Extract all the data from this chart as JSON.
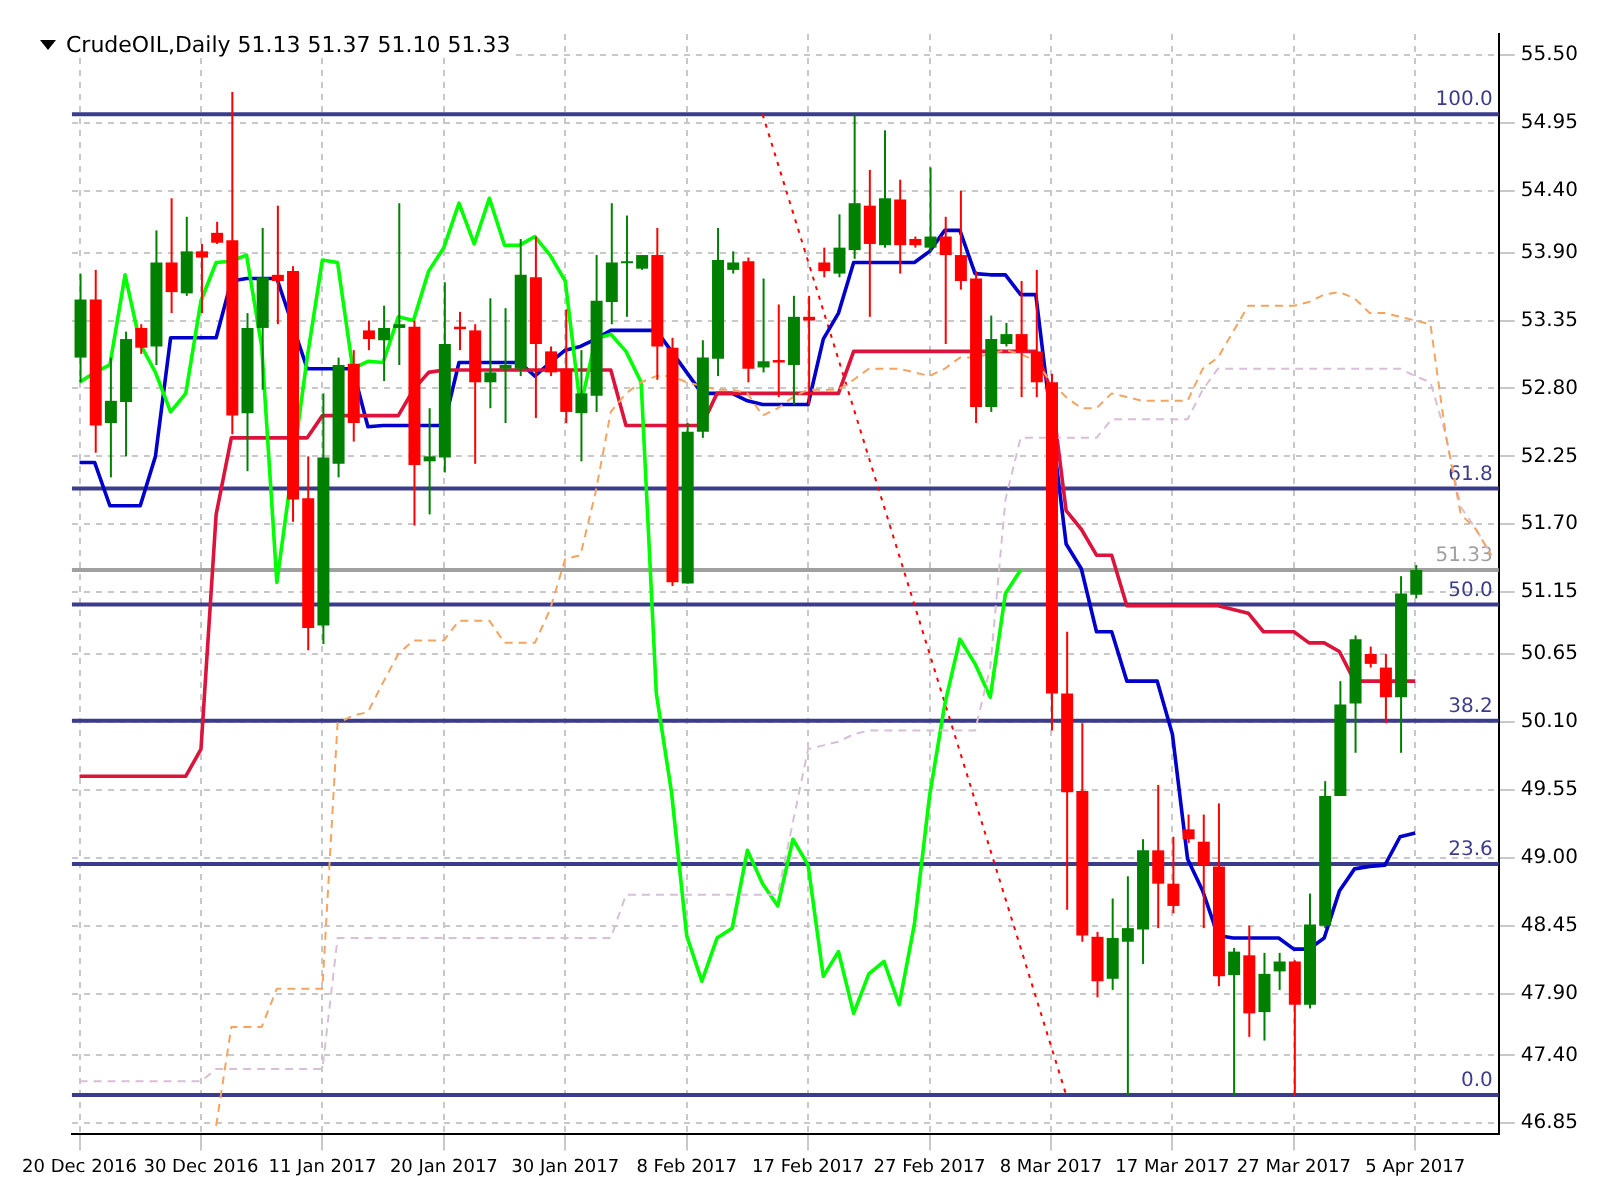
{
  "chart_data": {
    "type": "candlestick",
    "title": "CrudeOIL,Daily 51.13 51.37 51.10 51.33",
    "categories": [
      "20 Dec 2016",
      null,
      null,
      null,
      null,
      null,
      null,
      null,
      "30 Dec 2016",
      null,
      null,
      null,
      null,
      null,
      null,
      null,
      "11 Jan 2017",
      null,
      null,
      null,
      null,
      null,
      null,
      null,
      "20 Jan 2017",
      null,
      null,
      null,
      null,
      null,
      null,
      null,
      "30 Jan 2017",
      null,
      null,
      null,
      null,
      null,
      null,
      null,
      "8 Feb 2017",
      null,
      null,
      null,
      null,
      null,
      null,
      null,
      "17 Feb 2017",
      null,
      null,
      null,
      null,
      null,
      null,
      null,
      "27 Feb 2017",
      null,
      null,
      null,
      null,
      null,
      null,
      null,
      "8 Mar 2017",
      null,
      null,
      null,
      null,
      null,
      null,
      null,
      "17 Mar 2017",
      null,
      null,
      null,
      null,
      null,
      null,
      null,
      "27 Mar 2017",
      null,
      null,
      null,
      null,
      null,
      null,
      null,
      "5 Apr 2017",
      null,
      null,
      null,
      null,
      null
    ],
    "ohlc": [
      [
        53.05,
        53.73,
        52.85,
        53.52
      ],
      [
        53.52,
        53.76,
        52.28,
        52.5
      ],
      [
        52.52,
        53.05,
        52.08,
        52.7
      ],
      [
        52.69,
        53.26,
        52.25,
        53.2
      ],
      [
        53.29,
        53.32,
        53.08,
        53.13
      ],
      [
        53.14,
        54.08,
        52.99,
        53.82
      ],
      [
        53.82,
        54.34,
        53.41,
        53.58
      ],
      [
        53.57,
        54.19,
        53.55,
        53.91
      ],
      [
        53.91,
        53.97,
        53.41,
        53.86
      ],
      [
        54.06,
        54.15,
        53.97,
        53.98
      ],
      [
        54.0,
        55.2,
        52.43,
        52.58
      ],
      [
        52.6,
        53.41,
        52.13,
        53.29
      ],
      [
        53.29,
        54.1,
        52.79,
        53.7
      ],
      [
        53.72,
        54.28,
        53.32,
        53.67
      ],
      [
        53.75,
        53.79,
        51.72,
        51.9
      ],
      [
        51.91,
        52.25,
        50.68,
        50.86
      ],
      [
        50.88,
        52.76,
        50.73,
        52.24
      ],
      [
        52.19,
        53.05,
        52.08,
        52.99
      ],
      [
        53.0,
        53.11,
        52.37,
        52.52
      ],
      [
        53.27,
        53.35,
        53.11,
        53.2
      ],
      [
        53.19,
        53.47,
        52.86,
        53.29
      ],
      [
        53.29,
        54.3,
        52.99,
        53.32
      ],
      [
        53.3,
        53.35,
        51.69,
        52.18
      ],
      [
        52.21,
        52.64,
        51.78,
        52.25
      ],
      [
        52.24,
        53.66,
        52.12,
        53.16
      ],
      [
        53.3,
        53.42,
        53.11,
        53.28
      ],
      [
        53.27,
        53.32,
        52.19,
        52.85
      ],
      [
        52.85,
        53.53,
        52.64,
        52.93
      ],
      [
        52.96,
        53.45,
        52.52,
        52.99
      ],
      [
        52.96,
        54.01,
        52.9,
        53.72
      ],
      [
        53.7,
        54.03,
        52.56,
        53.16
      ],
      [
        53.1,
        53.14,
        52.9,
        52.93
      ],
      [
        52.96,
        53.44,
        52.52,
        52.61
      ],
      [
        52.6,
        53.11,
        52.21,
        52.76
      ],
      [
        52.74,
        53.88,
        52.61,
        53.51
      ],
      [
        53.5,
        54.3,
        53.32,
        53.82
      ],
      [
        53.82,
        54.2,
        53.38,
        53.83
      ],
      [
        53.77,
        53.88,
        53.76,
        53.88
      ],
      [
        53.88,
        54.1,
        52.87,
        53.14
      ],
      [
        53.13,
        53.21,
        51.2,
        51.23
      ],
      [
        51.22,
        52.52,
        51.22,
        52.45
      ],
      [
        52.45,
        53.19,
        52.4,
        53.05
      ],
      [
        53.04,
        54.1,
        52.9,
        53.84
      ],
      [
        53.76,
        53.91,
        53.73,
        53.82
      ],
      [
        53.83,
        53.86,
        52.85,
        52.96
      ],
      [
        52.97,
        53.69,
        52.93,
        53.02
      ],
      [
        53.03,
        53.48,
        52.73,
        53.01
      ],
      [
        52.99,
        53.55,
        52.67,
        53.38
      ],
      [
        53.38,
        53.55,
        52.67,
        53.35
      ],
      [
        53.82,
        53.94,
        53.7,
        53.75
      ],
      [
        53.73,
        54.21,
        53.7,
        53.94
      ],
      [
        53.92,
        55.01,
        53.85,
        54.3
      ],
      [
        54.28,
        54.57,
        53.38,
        53.97
      ],
      [
        53.96,
        54.89,
        53.94,
        54.34
      ],
      [
        54.33,
        54.49,
        53.73,
        53.96
      ],
      [
        54.01,
        54.03,
        53.94,
        53.96
      ],
      [
        53.94,
        54.59,
        53.91,
        54.03
      ],
      [
        54.03,
        54.19,
        53.16,
        53.88
      ],
      [
        53.88,
        54.4,
        53.6,
        53.67
      ],
      [
        53.69,
        53.75,
        52.52,
        52.65
      ],
      [
        52.65,
        53.39,
        52.61,
        53.2
      ],
      [
        53.16,
        53.33,
        53.14,
        53.24
      ],
      [
        53.24,
        53.67,
        52.73,
        53.1
      ],
      [
        53.1,
        53.76,
        52.73,
        52.85
      ],
      [
        52.85,
        52.92,
        50.03,
        50.33
      ],
      [
        50.33,
        50.83,
        48.58,
        49.53
      ],
      [
        49.54,
        50.09,
        48.32,
        48.37
      ],
      [
        48.36,
        48.4,
        47.87,
        48.0
      ],
      [
        48.02,
        48.67,
        47.93,
        48.35
      ],
      [
        48.32,
        48.85,
        47.07,
        48.43
      ],
      [
        48.42,
        49.15,
        48.14,
        49.06
      ],
      [
        49.06,
        49.59,
        48.43,
        48.79
      ],
      [
        48.79,
        49.17,
        48.55,
        48.61
      ],
      [
        49.23,
        49.35,
        49.12,
        49.15
      ],
      [
        49.13,
        49.35,
        48.43,
        48.94
      ],
      [
        48.93,
        49.44,
        47.96,
        48.04
      ],
      [
        48.05,
        48.27,
        47.07,
        48.24
      ],
      [
        48.21,
        48.45,
        47.55,
        47.74
      ],
      [
        47.75,
        48.23,
        47.52,
        48.06
      ],
      [
        48.08,
        48.23,
        47.93,
        48.16
      ],
      [
        48.16,
        48.17,
        47.07,
        47.81
      ],
      [
        47.81,
        48.71,
        47.78,
        48.46
      ],
      [
        48.45,
        49.62,
        48.43,
        49.5
      ],
      [
        49.5,
        50.43,
        49.5,
        50.24
      ],
      [
        50.25,
        50.8,
        49.85,
        50.77
      ],
      [
        50.65,
        50.71,
        50.54,
        50.57
      ],
      [
        50.54,
        50.65,
        50.09,
        50.3
      ],
      [
        50.3,
        51.28,
        49.85,
        51.14
      ],
      [
        51.13,
        51.37,
        51.1,
        51.33
      ],
      null,
      null,
      null,
      null,
      null
    ],
    "colors": [
      "#008000",
      "#ff0000",
      "#008000",
      "#008000",
      "#ff0000",
      "#008000",
      "#ff0000",
      "#008000",
      "#ff0000",
      "#ff0000",
      "#ff0000",
      "#008000",
      "#008000",
      "#ff0000",
      "#ff0000",
      "#ff0000",
      "#008000",
      "#008000",
      "#ff0000",
      "#ff0000",
      "#008000",
      "#008000",
      "#ff0000",
      "#008000",
      "#008000",
      "#ff0000",
      "#ff0000",
      "#008000",
      "#008000",
      "#008000",
      "#ff0000",
      "#ff0000",
      "#ff0000",
      "#008000",
      "#008000",
      "#008000",
      "#008000",
      "#008000",
      "#ff0000",
      "#ff0000",
      "#008000",
      "#008000",
      "#008000",
      "#008000",
      "#ff0000",
      "#008000",
      "#ff0000",
      "#008000",
      "#ff0000",
      "#ff0000",
      "#008000",
      "#008000",
      "#ff0000",
      "#008000",
      "#ff0000",
      "#ff0000",
      "#008000",
      "#ff0000",
      "#ff0000",
      "#ff0000",
      "#008000",
      "#008000",
      "#ff0000",
      "#ff0000",
      "#ff0000",
      "#ff0000",
      "#ff0000",
      "#ff0000",
      "#008000",
      "#008000",
      "#008000",
      "#ff0000",
      "#ff0000",
      "#ff0000",
      "#ff0000",
      "#ff0000",
      "#008000",
      "#ff0000",
      "#008000",
      "#008000",
      "#ff0000",
      "#008000",
      "#008000",
      "#008000",
      "#008000",
      "#ff0000",
      "#ff0000",
      "#008000",
      "#008000",
      null,
      null,
      null,
      null,
      null
    ],
    "series": [
      {
        "type": "line",
        "color": "#f4a460",
        "line_style": "dashed",
        "values": [
          null,
          null,
          null,
          null,
          null,
          null,
          null,
          null,
          null,
          46.83,
          47.63,
          47.63,
          47.63,
          47.94,
          47.94,
          47.94,
          47.94,
          50.09,
          50.15,
          50.18,
          50.42,
          50.65,
          50.76,
          50.76,
          50.76,
          50.92,
          50.92,
          50.92,
          50.74,
          50.74,
          50.74,
          51.01,
          51.42,
          51.45,
          51.96,
          52.61,
          52.76,
          52.85,
          52.9,
          52.9,
          52.85,
          52.82,
          52.79,
          52.79,
          52.76,
          52.58,
          52.64,
          52.73,
          52.79,
          52.79,
          52.79,
          52.87,
          52.96,
          52.96,
          52.96,
          52.93,
          52.9,
          52.96,
          53.05,
          53.05,
          53.08,
          53.11,
          53.08,
          53.02,
          52.85,
          52.73,
          52.64,
          52.64,
          52.76,
          52.73,
          52.7,
          52.7,
          52.7,
          52.7,
          52.96,
          53.05,
          53.26,
          53.47,
          53.47,
          53.47,
          53.47,
          53.5,
          53.56,
          53.58,
          53.53,
          53.41,
          53.41,
          53.38,
          53.35,
          53.32,
          52.43,
          51.78,
          51.66,
          51.45
        ]
      },
      {
        "type": "line",
        "color": "#d8bfd8",
        "line_style": "dashed",
        "values": [
          47.19,
          47.19,
          47.19,
          47.19,
          47.19,
          47.19,
          47.19,
          47.19,
          47.19,
          47.29,
          47.29,
          47.29,
          47.29,
          47.29,
          47.29,
          47.29,
          47.29,
          48.35,
          48.35,
          48.35,
          48.35,
          48.35,
          48.35,
          48.35,
          48.35,
          48.35,
          48.35,
          48.35,
          48.35,
          48.35,
          48.35,
          48.35,
          48.35,
          48.35,
          48.35,
          48.35,
          48.7,
          48.7,
          48.7,
          48.7,
          48.7,
          48.7,
          48.7,
          48.7,
          48.7,
          48.7,
          48.7,
          49.29,
          49.88,
          49.91,
          49.94,
          50.0,
          50.03,
          50.03,
          50.03,
          50.03,
          50.03,
          50.03,
          50.03,
          50.03,
          50.54,
          51.9,
          52.4,
          52.4,
          52.4,
          52.4,
          52.4,
          52.4,
          52.55,
          52.55,
          52.55,
          52.55,
          52.55,
          52.55,
          52.79,
          52.96,
          52.96,
          52.96,
          52.96,
          52.96,
          52.96,
          52.96,
          52.96,
          52.96,
          52.96,
          52.96,
          52.96,
          52.96,
          52.9,
          52.85,
          52.43,
          51.84,
          51.66,
          51.45
        ]
      },
      {
        "type": "line",
        "color": "#00ff00",
        "line_style": "solid",
        "values": [
          52.85,
          52.93,
          52.99,
          53.72,
          53.16,
          52.93,
          52.61,
          52.76,
          53.51,
          53.82,
          53.83,
          53.88,
          53.14,
          51.23,
          null,
          53.05,
          53.84,
          53.82,
          52.96,
          53.02,
          53.01,
          53.38,
          53.35,
          53.75,
          53.94,
          54.3,
          53.97,
          54.34,
          53.96,
          53.96,
          54.03,
          53.88,
          53.67,
          52.65,
          53.2,
          53.24,
          53.1,
          52.85,
          50.33,
          49.53,
          48.37,
          48.0,
          48.35,
          48.43,
          49.06,
          48.79,
          48.61,
          49.15,
          48.94,
          48.04,
          48.24,
          47.74,
          48.06,
          48.16,
          47.81,
          48.46,
          49.5,
          50.24,
          50.77,
          50.57,
          50.3,
          51.14,
          51.33,
          null,
          null,
          null,
          null,
          null,
          null,
          null,
          null,
          null,
          null,
          null,
          null,
          null,
          null,
          null,
          null,
          null,
          null,
          null,
          null,
          null,
          null,
          null,
          null,
          null,
          null,
          null,
          null,
          null,
          null,
          null
        ]
      },
      {
        "type": "line",
        "color": "#dc143c",
        "line_style": "solid",
        "values": [
          49.66,
          49.66,
          49.66,
          49.66,
          49.66,
          49.66,
          49.66,
          49.66,
          49.88,
          51.78,
          52.4,
          52.4,
          52.4,
          52.4,
          52.4,
          52.4,
          52.58,
          52.58,
          52.58,
          52.58,
          52.58,
          52.58,
          52.79,
          52.93,
          52.95,
          52.95,
          52.95,
          52.95,
          52.95,
          52.95,
          52.95,
          52.95,
          52.95,
          52.95,
          52.95,
          52.95,
          52.5,
          52.5,
          52.5,
          52.5,
          52.5,
          52.5,
          52.76,
          52.76,
          52.76,
          52.76,
          52.76,
          52.76,
          52.76,
          52.76,
          52.76,
          53.1,
          53.1,
          53.1,
          53.1,
          53.1,
          53.1,
          53.1,
          53.1,
          53.1,
          53.1,
          53.1,
          53.1,
          53.1,
          52.79,
          51.81,
          51.66,
          51.45,
          51.45,
          51.04,
          51.04,
          51.04,
          51.04,
          51.04,
          51.04,
          51.04,
          51.01,
          50.98,
          50.83,
          50.83,
          50.83,
          50.74,
          50.74,
          50.67,
          50.43,
          50.43,
          50.43,
          50.43,
          50.43,
          null,
          null,
          null,
          null,
          null
        ]
      },
      {
        "type": "line",
        "color": "#0000cc",
        "line_style": "solid",
        "values": [
          52.2,
          52.2,
          51.85,
          51.85,
          51.85,
          52.25,
          53.21,
          53.21,
          53.21,
          53.21,
          53.67,
          53.69,
          53.69,
          53.69,
          null,
          52.96,
          52.96,
          52.96,
          52.96,
          52.49,
          52.5,
          52.5,
          52.5,
          52.5,
          52.5,
          53.01,
          53.01,
          53.01,
          53.01,
          53.01,
          52.9,
          53.01,
          53.11,
          53.14,
          53.2,
          53.27,
          53.27,
          53.27,
          53.27,
          null,
          null,
          52.76,
          52.76,
          52.76,
          52.7,
          52.67,
          52.67,
          52.67,
          52.67,
          53.2,
          53.41,
          53.82,
          53.82,
          53.82,
          53.82,
          53.82,
          53.91,
          54.08,
          54.08,
          53.73,
          53.72,
          53.72,
          53.56,
          53.56,
          null,
          51.54,
          51.34,
          50.83,
          50.83,
          50.43,
          50.43,
          50.43,
          50.0,
          48.99,
          48.73,
          48.37,
          48.35,
          48.35,
          48.35,
          48.35,
          48.26,
          48.26,
          48.35,
          48.73,
          48.91,
          48.93,
          48.94,
          49.17,
          49.2,
          null,
          null,
          null,
          null,
          null
        ]
      },
      {
        "type": "line",
        "color": "#ff0000",
        "line_style": "dotted",
        "values": [
          null,
          null,
          null,
          null,
          null,
          null,
          null,
          null,
          null,
          null,
          null,
          null,
          null,
          null,
          null,
          null,
          null,
          null,
          null,
          null,
          null,
          null,
          null,
          null,
          null,
          null,
          null,
          null,
          null,
          null,
          null,
          null,
          null,
          null,
          null,
          null,
          null,
          null,
          null,
          null,
          null,
          null,
          null,
          null,
          null,
          55.02,
          null,
          null,
          null,
          null,
          null,
          null,
          null,
          null,
          null,
          null,
          null,
          null,
          null,
          null,
          null,
          null,
          null,
          null,
          null,
          47.08,
          null,
          null,
          null,
          null,
          null,
          null,
          null,
          null,
          null,
          null,
          null,
          null,
          null,
          null,
          null,
          null,
          null,
          null,
          null,
          null,
          null,
          null,
          null,
          null,
          null,
          null,
          null,
          null
        ]
      }
    ],
    "ref_lines": [
      {
        "axis": "y",
        "value": 55.02,
        "color": "#3c3c8c"
      },
      {
        "axis": "y",
        "value": 51.99,
        "color": "#3c3c8c"
      },
      {
        "axis": "y",
        "value": 51.05,
        "color": "#3c3c8c"
      },
      {
        "axis": "y",
        "value": 50.11,
        "color": "#3c3c8c"
      },
      {
        "axis": "y",
        "value": 48.95,
        "color": "#3c3c8c"
      },
      {
        "axis": "y",
        "value": 47.08,
        "color": "#3c3c8c"
      },
      {
        "axis": "y",
        "value": 51.33,
        "label": "51.33",
        "color": "#a0a0a0"
      }
    ],
    "annotations": [
      {
        "text": "100.0",
        "y": 55.02
      },
      {
        "text": "61.8",
        "y": 51.99
      },
      {
        "text": "50.0",
        "y": 51.05
      },
      {
        "text": "38.2",
        "y": 50.11
      },
      {
        "text": "23.6",
        "y": 48.95
      },
      {
        "text": "0.0",
        "y": 47.08
      }
    ],
    "ylim": [
      46.76,
      55.67
    ],
    "yticks": [
      {
        "value": 46.85,
        "label": "46.85"
      },
      {
        "value": 47.4,
        "label": "47.40"
      },
      {
        "value": 47.9,
        "label": "47.90"
      },
      {
        "value": 48.45,
        "label": "48.45"
      },
      {
        "value": 49,
        "label": "49.00"
      },
      {
        "value": 49.55,
        "label": "49.55"
      },
      {
        "value": 50.1,
        "label": "50.10"
      },
      {
        "value": 50.65,
        "label": "50.65"
      },
      {
        "value": 51.15,
        "label": "51.15"
      },
      {
        "value": 51.7,
        "label": "51.70"
      },
      {
        "value": 52.25,
        "label": "52.25"
      },
      {
        "value": 52.8,
        "label": "52.80"
      },
      {
        "value": 53.35,
        "label": "53.35"
      },
      {
        "value": 53.9,
        "label": "53.90"
      },
      {
        "value": 54.4,
        "label": "54.40"
      },
      {
        "value": 54.95,
        "label": "54.95"
      },
      {
        "value": 55.5,
        "label": "55.50"
      }
    ],
    "grid": true,
    "legend": false
  }
}
